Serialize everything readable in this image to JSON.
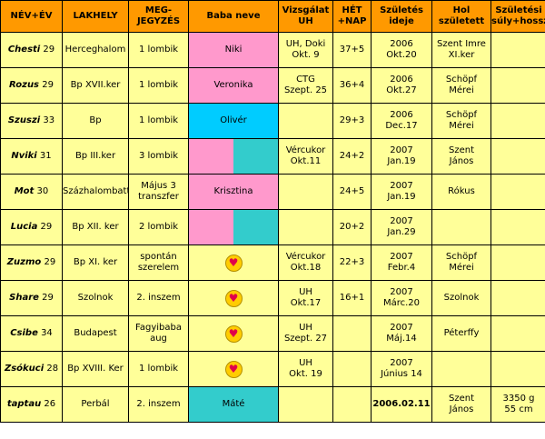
{
  "headers": {
    "nev": "NÉV+ÉV",
    "lakhely": "LAKHELY",
    "megjegyzes": [
      "MEG-",
      "JEGYZÉS"
    ],
    "baba": "Baba neve",
    "vizsgalat": [
      "Vizsgálat",
      "UH"
    ],
    "het": [
      "HÉT",
      "+NAP"
    ],
    "szuletes": [
      "Születés",
      "ideje"
    ],
    "hol": [
      "Hol",
      "született"
    ],
    "suly": [
      "Születési",
      "súly+hossz"
    ]
  },
  "rows": [
    {
      "name": "Chesti",
      "age": "29",
      "place": "Herceghalom",
      "note": [
        "1 lombik"
      ],
      "baby": "Niki",
      "baby_style": "pink",
      "exam": [
        "UH, Doki",
        "Okt. 9"
      ],
      "week": "37+5",
      "birth": [
        "2006",
        "Okt.20"
      ],
      "where": [
        "Szent Imre",
        "XI.ker"
      ],
      "weight": []
    },
    {
      "name": "Rozus",
      "age": "29",
      "place": "Bp XVII.ker",
      "note": [
        "1 lombik"
      ],
      "baby": "Veronika",
      "baby_style": "pink",
      "exam": [
        "CTG",
        "Szept. 25"
      ],
      "week": "36+4",
      "birth": [
        "2006",
        "Okt.27"
      ],
      "where": [
        "Schöpf",
        "Mérei"
      ],
      "weight": []
    },
    {
      "name": "Szuszi",
      "age": "33",
      "place": "Bp",
      "note": [
        "1 lombik"
      ],
      "baby": "Olivér",
      "baby_style": "cyan",
      "exam": [],
      "week": "29+3",
      "birth": [
        "2006",
        "Dec.17"
      ],
      "where": [
        "Schöpf",
        "Mérei"
      ],
      "weight": []
    },
    {
      "name": "Nviki",
      "age": "31",
      "place": "Bp III.ker",
      "note": [
        "3 lombik"
      ],
      "baby": "",
      "baby_style": "split",
      "exam": [
        "Vércukor",
        "Okt.11"
      ],
      "week": "24+2",
      "birth": [
        "2007",
        "Jan.19"
      ],
      "where": [
        "Szent",
        "János"
      ],
      "weight": []
    },
    {
      "name": "Mot",
      "age": "30",
      "place": "Százhalombatta",
      "place_small": true,
      "note": [
        "Május 3",
        "transzfer"
      ],
      "baby": "Krisztina",
      "baby_style": "pink",
      "exam": [],
      "week": "24+5",
      "birth": [
        "2007",
        "Jan.19"
      ],
      "where": [
        "Rókus"
      ],
      "weight": []
    },
    {
      "name": "Lucia",
      "age": "29",
      "place": "Bp XII. ker",
      "note": [
        "2 lombik"
      ],
      "baby": "",
      "baby_style": "split",
      "exam": [],
      "week": "20+2",
      "birth": [
        "2007",
        "Jan.29"
      ],
      "where": [],
      "weight": []
    },
    {
      "name": "Zuzmo",
      "age": "29",
      "place": "Bp XI. ker",
      "note": [
        "spontán",
        "szerelem"
      ],
      "baby": "",
      "baby_style": "smiley",
      "exam": [
        "Vércukor",
        "Okt.18"
      ],
      "week": "22+3",
      "birth": [
        "2007",
        "Febr.4"
      ],
      "where": [
        "Schöpf",
        "Mérei"
      ],
      "weight": []
    },
    {
      "name": "Share",
      "age": "29",
      "place": "Szolnok",
      "note": [
        "2. inszem"
      ],
      "baby": "",
      "baby_style": "smiley",
      "exam": [
        "UH",
        "Okt.17"
      ],
      "week": "16+1",
      "birth": [
        "2007",
        "Márc.20"
      ],
      "where": [
        "Szolnok"
      ],
      "weight": []
    },
    {
      "name": "Csibe",
      "age": "34",
      "place": "Budapest",
      "note": [
        "Fagyibaba",
        "aug"
      ],
      "baby": "",
      "baby_style": "smiley",
      "exam": [
        "UH",
        "Szept. 27"
      ],
      "week": "",
      "birth": [
        "2007",
        "Máj.14"
      ],
      "where": [
        "Péterffy"
      ],
      "weight": []
    },
    {
      "name": "Zsókuci",
      "age": "28",
      "place": "Bp XVIII. Ker",
      "note": [
        "1 lombik"
      ],
      "baby": "",
      "baby_style": "smiley",
      "exam": [
        "UH",
        "Okt. 19"
      ],
      "week": "",
      "birth": [
        "2007",
        "Június 14"
      ],
      "where": [],
      "weight": []
    },
    {
      "name": "taptau",
      "age": "26",
      "place": "Perbál",
      "note": [
        "2. inszem"
      ],
      "baby": "Máté",
      "baby_style": "teal",
      "exam": [],
      "week": "",
      "birth": [
        "2006.02.11"
      ],
      "birth_bold": true,
      "where": [
        "Szent",
        "János"
      ],
      "weight": [
        "3350 g",
        "55 cm"
      ]
    }
  ],
  "colors": {
    "header": "#ff9900",
    "cell": "#ffff99",
    "pink": "#ff99cc",
    "teal": "#33cccc",
    "cyan": "#00ccff",
    "smiley": "#ffcc00"
  },
  "icons": {
    "baby_placeholder": "smiley-heart-icon"
  }
}
